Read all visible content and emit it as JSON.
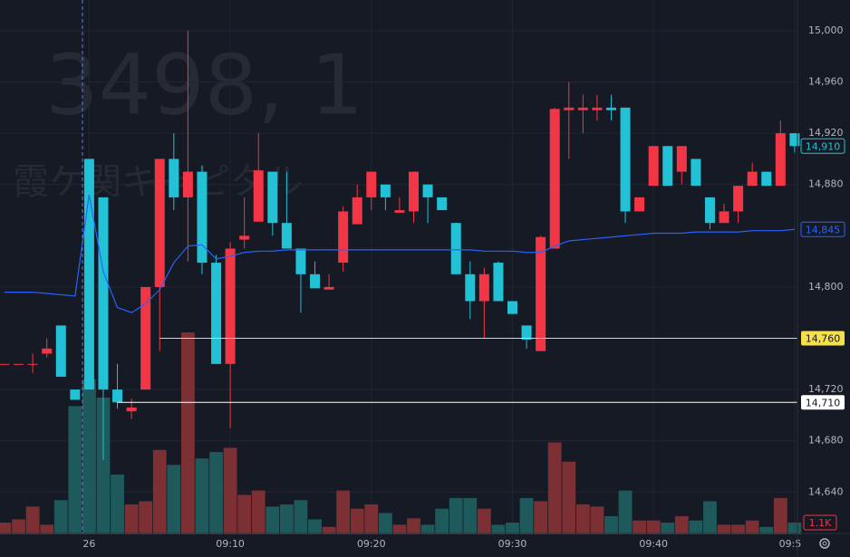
{
  "chart_data": {
    "type": "candlestick",
    "watermark": {
      "symbol": "3498, 1",
      "name": "霞ケ関キャピタル"
    },
    "open": [
      14740,
      14740,
      14740,
      14748,
      14770,
      14720,
      14900,
      14870,
      14720,
      14703,
      14720,
      14800,
      14900,
      14870,
      14890,
      14819,
      14740,
      14837,
      14851,
      14890,
      14850,
      14830,
      14810,
      14798,
      14819,
      14849,
      14870,
      14880,
      14858,
      14859,
      14880,
      14870,
      14850,
      14810,
      14789,
      14819,
      14789,
      14770,
      14750,
      14830,
      14938,
      14938,
      14938,
      14940,
      14940,
      14859,
      14879,
      14910,
      14890,
      14900,
      14870,
      14850,
      14859,
      14879,
      14890,
      14879,
      14920
    ],
    "high": [
      14740,
      14740,
      14748,
      14760,
      14770,
      14720,
      14900,
      14870,
      14740,
      14713,
      14800,
      14900,
      14920,
      15000,
      14895,
      14825,
      14835,
      14870,
      14920,
      14890,
      14890,
      14830,
      14820,
      14810,
      14863,
      14880,
      14890,
      14880,
      14870,
      14890,
      14880,
      14870,
      14850,
      14820,
      14815,
      14820,
      14789,
      14770,
      14840,
      14940,
      14960,
      14950,
      14950,
      14950,
      14940,
      14870,
      14910,
      14910,
      14910,
      14900,
      14870,
      14865,
      14879,
      14897,
      14890,
      14930,
      14920
    ],
    "low": [
      14740,
      14740,
      14733,
      14745,
      14730,
      14712,
      14720,
      14665,
      14705,
      14697,
      14720,
      14750,
      14860,
      14820,
      14810,
      14740,
      14690,
      14830,
      14851,
      14840,
      14830,
      14780,
      14799,
      14798,
      14812,
      14849,
      14860,
      14860,
      14858,
      14850,
      14850,
      14860,
      14810,
      14775,
      14760,
      14789,
      14779,
      14752,
      14750,
      14830,
      14900,
      14920,
      14930,
      14930,
      14850,
      14859,
      14879,
      14879,
      14880,
      14879,
      14845,
      14850,
      14850,
      14879,
      14879,
      14879,
      14905
    ],
    "close": [
      14740,
      14740,
      14740,
      14752,
      14730,
      14712,
      14720,
      14720,
      14710,
      14706,
      14800,
      14900,
      14870,
      14890,
      14819,
      14740,
      14830,
      14840,
      14891,
      14850,
      14830,
      14810,
      14799,
      14800,
      14859,
      14870,
      14890,
      14870,
      14860,
      14890,
      14870,
      14860,
      14810,
      14789,
      14810,
      14789,
      14779,
      14759,
      14839,
      14939,
      14940,
      14940,
      14940,
      14938,
      14859,
      14870,
      14910,
      14879,
      14910,
      14879,
      14850,
      14859,
      14879,
      14890,
      14879,
      14920,
      14910
    ],
    "volume": [
      1100,
      1400,
      2600,
      900,
      3200,
      12000,
      14500,
      12800,
      5600,
      2800,
      3100,
      7900,
      6500,
      18900,
      7100,
      7700,
      8100,
      3700,
      4100,
      2600,
      2800,
      3200,
      1400,
      700,
      4100,
      2400,
      2800,
      2000,
      900,
      1500,
      900,
      2400,
      3400,
      3400,
      2400,
      900,
      1100,
      3400,
      3100,
      8600,
      6800,
      2800,
      2600,
      1700,
      4100,
      1300,
      1300,
      1100,
      1700,
      1300,
      3100,
      900,
      900,
      1300,
      700,
      3400,
      1100
    ],
    "volume_last_label": "1.1K",
    "ma": [
      14796,
      14796,
      14796,
      14795,
      14794,
      14793,
      14872,
      14812,
      14784,
      14780,
      14787,
      14798,
      14819,
      14832,
      14833,
      14822,
      14824,
      14827,
      14828,
      14828,
      14829,
      14829,
      14829,
      14829,
      14829,
      14829,
      14829,
      14829,
      14829,
      14829,
      14829,
      14829,
      14829,
      14829,
      14828,
      14828,
      14828,
      14827,
      14827,
      14832,
      14836,
      14837,
      14838,
      14839,
      14840,
      14841,
      14842,
      14842,
      14842,
      14843,
      14843,
      14843,
      14843,
      14844,
      14844,
      14844,
      14845
    ],
    "colors": {
      "up": "#f23645",
      "down": "#22c1d6",
      "volume_up": "#7c3034",
      "volume_down": "#1e5a5c",
      "ma": "#2962ff"
    },
    "xlim": [
      -0.32,
      56.2
    ],
    "ylim": [
      14607,
      15024
    ],
    "y2lim": [
      0,
      50000
    ],
    "xticks": [
      {
        "value": 6,
        "label": "26"
      },
      {
        "value": 16,
        "label": "09:10"
      },
      {
        "value": 26,
        "label": "09:20"
      },
      {
        "value": 36,
        "label": "09:30"
      },
      {
        "value": 46,
        "label": "09:40"
      },
      {
        "value": 56,
        "label": "09:5"
      }
    ],
    "yticks": [
      {
        "value": 15000,
        "label": "15,000"
      },
      {
        "value": 14960,
        "label": "14,960"
      },
      {
        "value": 14920,
        "label": "14,920"
      },
      {
        "value": 14880,
        "label": "14,880"
      },
      {
        "value": 14800,
        "label": "14,800"
      },
      {
        "value": 14720,
        "label": "14,720"
      },
      {
        "value": 14680,
        "label": "14,680"
      },
      {
        "value": 14640,
        "label": "14,640"
      }
    ],
    "grid": true,
    "price_lines": [
      {
        "value": 14760,
        "label": "14,760",
        "color": "#f5e04a",
        "from_index": 11,
        "style": "filled"
      },
      {
        "value": 14710,
        "label": "14,710",
        "color": "#ffffff",
        "from_index": 8,
        "style": "filled"
      }
    ],
    "badges": [
      {
        "value": 14910,
        "label": "14,910",
        "color": "#22c1d6"
      },
      {
        "value": 14845,
        "label": "14,845",
        "color": "#2962ff"
      }
    ]
  }
}
